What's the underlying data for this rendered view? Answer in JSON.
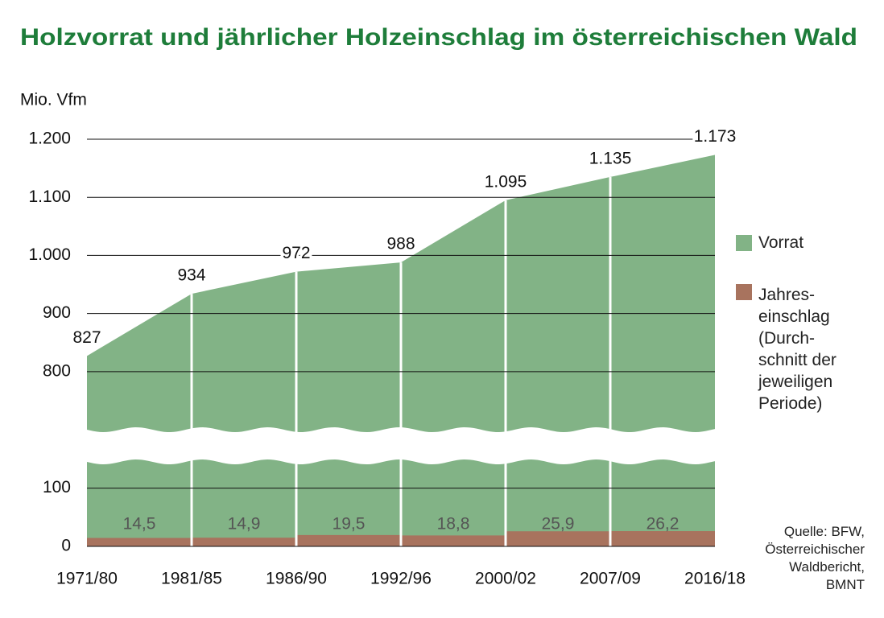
{
  "chart_data": {
    "type": "area",
    "title": "Holzvorrat und jährlicher Holzeinschlag im österreichischen Wald",
    "y_axis_label": "Mio. Vfm",
    "categories": [
      "1971/80",
      "1981/85",
      "1986/90",
      "1992/96",
      "2000/02",
      "2007/09",
      "2016/18"
    ],
    "series": [
      {
        "name": "Vorrat",
        "color": "#82b386",
        "type": "area",
        "values": [
          827,
          934,
          972,
          988,
          1095,
          1135,
          1173
        ],
        "value_labels": [
          "827",
          "934",
          "972",
          "988",
          "1.095",
          "1.135",
          "1.173"
        ]
      },
      {
        "name": "Jahres-\neinschlag\n(Durch-\nschnitt der\njeweiligen\nPeriode)",
        "color": "#a8735e",
        "type": "step",
        "values": [
          null,
          14.5,
          14.9,
          19.5,
          18.8,
          25.9,
          26.2
        ],
        "value_labels": [
          null,
          "14,5",
          "14,9",
          "19,5",
          "18,8",
          "25,9",
          "26,2"
        ]
      }
    ],
    "ylim": [
      0,
      1200
    ],
    "y_break": [
      145,
      700
    ],
    "yticks": [
      0,
      100,
      800,
      900,
      {
        "value": 1000,
        "label": "1.000"
      },
      {
        "value": 1100,
        "label": "1.100"
      },
      {
        "value": 1200,
        "label": "1.200"
      }
    ],
    "grid": true,
    "legend": "right",
    "source": "Quelle: BFW,\nÖsterreichischer\nWaldbericht,\nBMNT"
  }
}
